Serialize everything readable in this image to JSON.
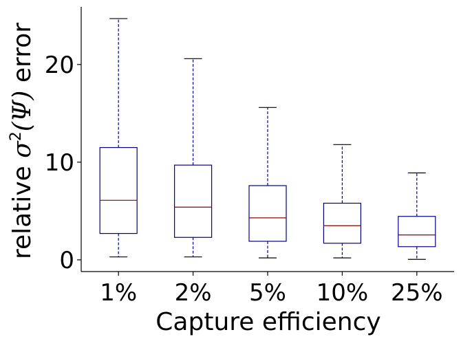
{
  "chart_data": {
    "type": "box",
    "title": "",
    "xlabel": "Capture efficiency",
    "ylabel": {
      "prefix": "relative ",
      "symbol": "σ",
      "superscript": "2",
      "argument": "(Ψ)",
      "suffix": " error"
    },
    "categories": [
      "1%",
      "2%",
      "5%",
      "10%",
      "25%"
    ],
    "boxes": [
      {
        "whisker_low": 0.3,
        "q1": 2.7,
        "median": 6.1,
        "q3": 11.5,
        "whisker_high": 24.7
      },
      {
        "whisker_low": 0.3,
        "q1": 2.3,
        "median": 5.4,
        "q3": 9.7,
        "whisker_high": 20.6
      },
      {
        "whisker_low": 0.2,
        "q1": 1.9,
        "median": 4.3,
        "q3": 7.6,
        "whisker_high": 15.6
      },
      {
        "whisker_low": 0.2,
        "q1": 1.7,
        "median": 3.5,
        "q3": 5.8,
        "whisker_high": 11.8
      },
      {
        "whisker_low": 0.05,
        "q1": 1.35,
        "median": 2.55,
        "q3": 4.45,
        "whisker_high": 8.9
      }
    ],
    "yticks": [
      0,
      10,
      20
    ],
    "ylim": [
      -1.2,
      25.9
    ],
    "grid": false,
    "colors": {
      "box": "#00008b",
      "median": "#8b0000",
      "whisker": "#00008b",
      "cap": "#000000"
    }
  }
}
